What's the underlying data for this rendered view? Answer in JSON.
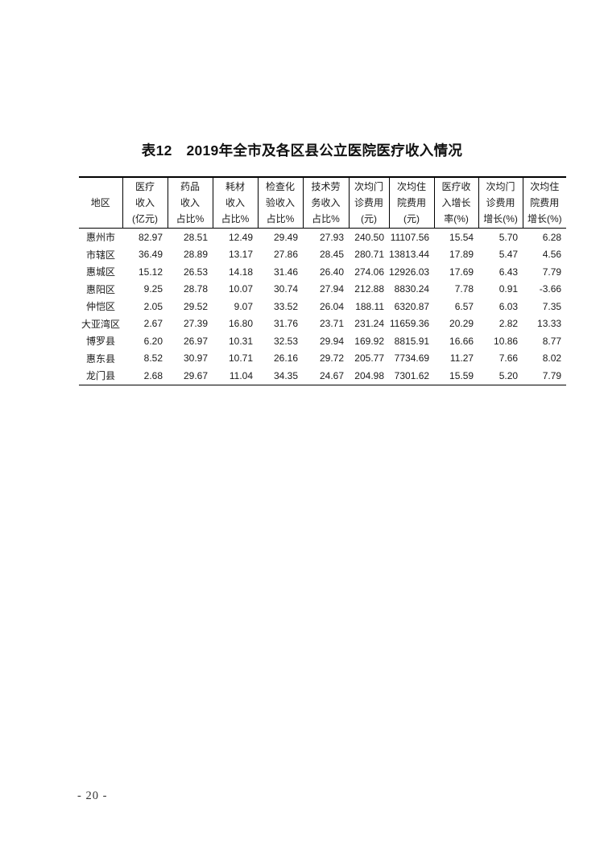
{
  "document": {
    "title": "表12　2019年全市及各区县公立医院医疗收入情况",
    "page_number": "- 20 -",
    "text_color": "#1a1a1a",
    "border_color": "#000000",
    "background_color": "#ffffff"
  },
  "table": {
    "header": [
      [
        "地区"
      ],
      [
        "医疗",
        "收入",
        "(亿元)"
      ],
      [
        "药品",
        "收入",
        "占比%"
      ],
      [
        "耗材",
        "收入",
        "占比%"
      ],
      [
        "检查化",
        "验收入",
        "占比%"
      ],
      [
        "技术劳",
        "务收入",
        "占比%"
      ],
      [
        "次均门",
        "诊费用",
        "(元)"
      ],
      [
        "次均住",
        "院费用",
        "(元)"
      ],
      [
        "医疗收",
        "入增长",
        "率(%)"
      ],
      [
        "次均门",
        "诊费用",
        "增长(%)"
      ],
      [
        "次均住",
        "院费用",
        "增长(%)"
      ]
    ],
    "rows": [
      [
        "惠州市",
        "82.97",
        "28.51",
        "12.49",
        "29.49",
        "27.93",
        "240.50",
        "11107.56",
        "15.54",
        "5.70",
        "6.28"
      ],
      [
        "市辖区",
        "36.49",
        "28.89",
        "13.17",
        "27.86",
        "28.45",
        "280.71",
        "13813.44",
        "17.89",
        "5.47",
        "4.56"
      ],
      [
        "惠城区",
        "15.12",
        "26.53",
        "14.18",
        "31.46",
        "26.40",
        "274.06",
        "12926.03",
        "17.69",
        "6.43",
        "7.79"
      ],
      [
        "惠阳区",
        "9.25",
        "28.78",
        "10.07",
        "30.74",
        "27.94",
        "212.88",
        "8830.24",
        "7.78",
        "0.91",
        "-3.66"
      ],
      [
        "仲恺区",
        "2.05",
        "29.52",
        "9.07",
        "33.52",
        "26.04",
        "188.11",
        "6320.87",
        "6.57",
        "6.03",
        "7.35"
      ],
      [
        "大亚湾区",
        "2.67",
        "27.39",
        "16.80",
        "31.76",
        "23.71",
        "231.24",
        "11659.36",
        "20.29",
        "2.82",
        "13.33"
      ],
      [
        "博罗县",
        "6.20",
        "26.97",
        "10.31",
        "32.53",
        "29.94",
        "169.92",
        "8815.91",
        "16.66",
        "10.86",
        "8.77"
      ],
      [
        "惠东县",
        "8.52",
        "30.97",
        "10.71",
        "26.16",
        "29.72",
        "205.77",
        "7734.69",
        "11.27",
        "7.66",
        "8.02"
      ],
      [
        "龙门县",
        "2.68",
        "29.67",
        "11.04",
        "34.35",
        "24.67",
        "204.98",
        "7301.62",
        "15.59",
        "5.20",
        "7.79"
      ]
    ]
  }
}
